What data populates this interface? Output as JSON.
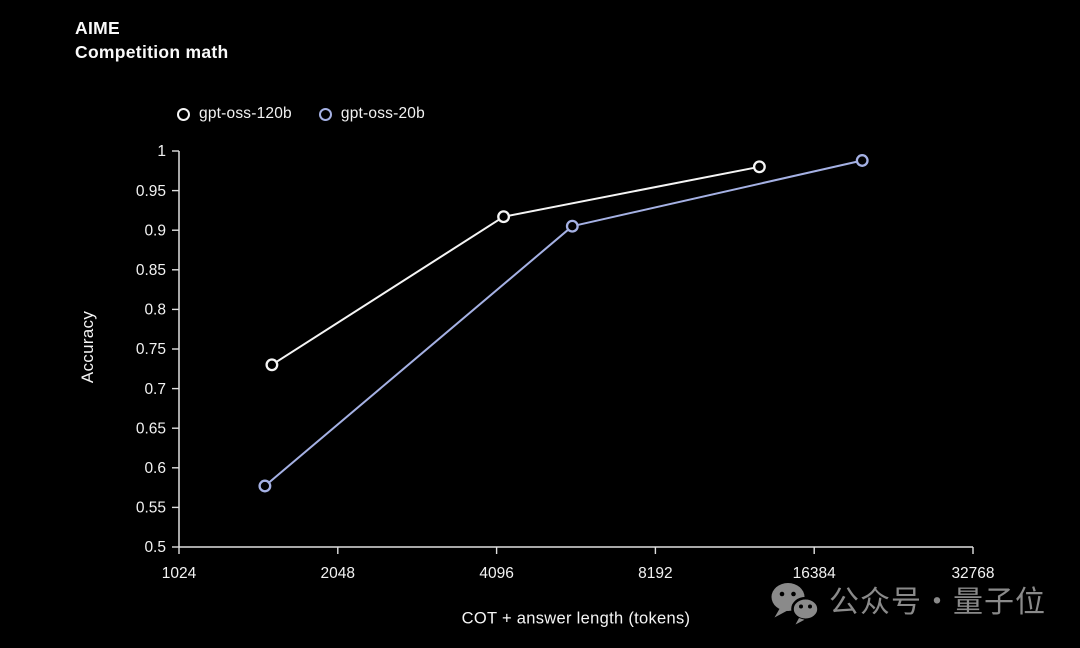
{
  "page": {
    "background": "#000000"
  },
  "title": {
    "line1": "AIME",
    "line2": "Competition math"
  },
  "watermark": {
    "icon": "wechat-icon",
    "text": "公众号・量子位",
    "color": "#8a8a8a"
  },
  "chart_data": {
    "type": "line",
    "title": "AIME Competition math",
    "xlabel": "COT + answer length (tokens)",
    "ylabel": "Accuracy",
    "x_scale": "log2",
    "xlim": [
      1024,
      32768
    ],
    "ylim": [
      0.5,
      1.0
    ],
    "xtick_labels": [
      "1024",
      "2048",
      "4096",
      "8192",
      "16384",
      "32768"
    ],
    "ytick_labels": [
      "0.5",
      "0.55",
      "0.6",
      "0.65",
      "0.7",
      "0.75",
      "0.8",
      "0.85",
      "0.9",
      "0.95",
      "1"
    ],
    "grid": false,
    "legend_position": "top-left",
    "axis_color": "#e0e0e0",
    "tick_text_color": "#f2f2f2",
    "series": [
      {
        "name": "gpt-oss-120b",
        "color": "#f5f5f5",
        "points": [
          [
            1536,
            0.73
          ],
          [
            4224,
            0.917
          ],
          [
            12900,
            0.98
          ]
        ]
      },
      {
        "name": "gpt-oss-20b",
        "color": "#a5b1e4",
        "points": [
          [
            1490,
            0.577
          ],
          [
            5700,
            0.905
          ],
          [
            20200,
            0.988
          ]
        ]
      }
    ]
  }
}
